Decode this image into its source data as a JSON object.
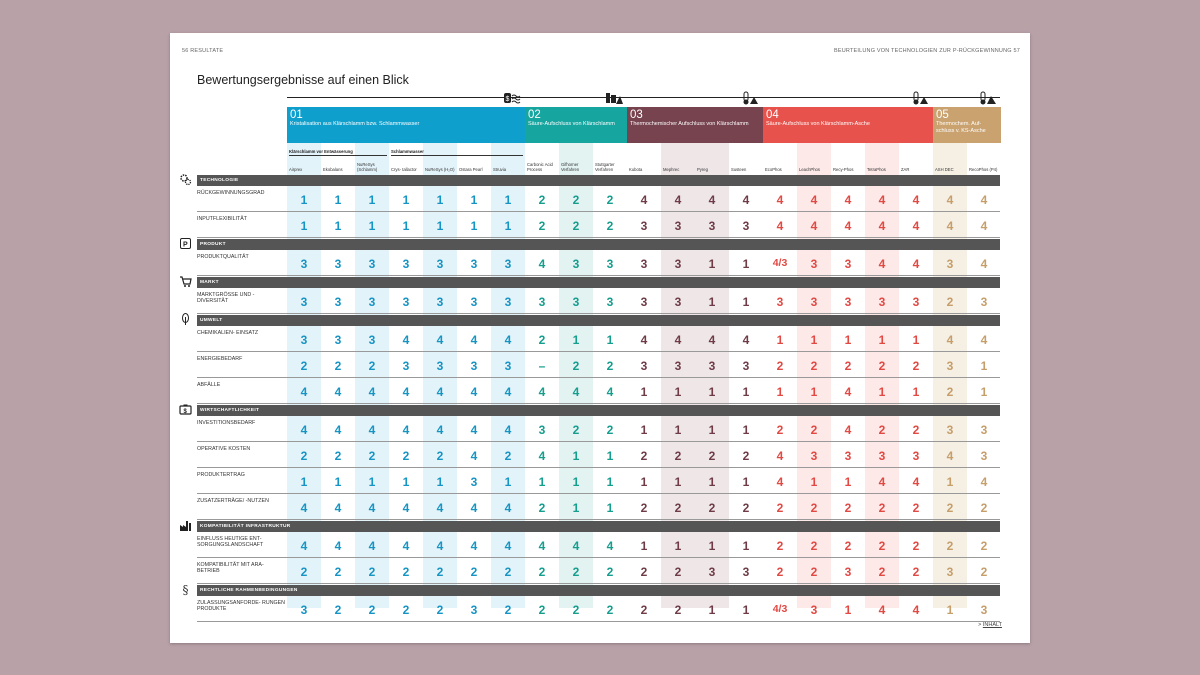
{
  "header": {
    "left": "56    RESULTATE",
    "right": "BEURTEILUNG VON TECHNOLOGIEN ZUR P-RÜCKGEWINNUNG    57"
  },
  "title": "Bewertungsergebnisse auf einen Blick",
  "groups": [
    {
      "num": "01",
      "label": "Kristalisation aus Klärschlamm bzw. Schlammwasser",
      "color": "#0f9fcd",
      "icon": "water-waves-icon"
    },
    {
      "num": "02",
      "label": "Säure-Aufschluss von Klärschlamm",
      "color": "#17a5a0",
      "icon": "acid-bottle-icon"
    },
    {
      "num": "03",
      "label": "Thermochemischer Aufschluss von Klärschlamm",
      "color": "#76434f",
      "icon": "thermometer-icon"
    },
    {
      "num": "04",
      "label": "Säure-Aufschluss von Klärschlamm-Asche",
      "color": "#e8524c",
      "icon": "thermometer-icon"
    },
    {
      "num": "05",
      "label": "Thermochem. Auf- schluss v. KS-Asche",
      "color": "#c9a26f",
      "icon": "ash-pile-icon"
    }
  ],
  "subgroups": [
    {
      "label": "Klärschlamm vor Entwässerung"
    },
    {
      "label": "Schlammwasser"
    }
  ],
  "columns": [
    "Airprex",
    "Ekobalans",
    "NuReSys (Schlamm)",
    "Crys- tallactor",
    "NuReSys (H₂O)",
    "Ostara Pearl",
    "Struvia",
    "Carbonic Acid Process",
    "Gifhorner Verfahren",
    "Stuttgarter Verfahren",
    "Kubota",
    "Mephrec",
    "Pyreg",
    "Susteen",
    "EcoPhos",
    "LeachPhos",
    "Recy-Phos",
    "TetraPhos",
    "ZAR",
    "ASH DEC",
    "RecoPhos (P4)"
  ],
  "categories": [
    {
      "label": "TECHNOLOGIE",
      "icon": "gears-icon",
      "rows": [
        {
          "label": "RÜCKGEWINNUNGSGRAD",
          "values": [
            "1",
            "1",
            "1",
            "1",
            "1",
            "1",
            "1",
            "2",
            "2",
            "2",
            "4",
            "4",
            "4",
            "4",
            "4",
            "4",
            "4",
            "4",
            "4",
            "4",
            "4"
          ]
        },
        {
          "label": "INPUTFLEXIBILITÄT",
          "values": [
            "1",
            "1",
            "1",
            "1",
            "1",
            "1",
            "1",
            "2",
            "2",
            "2",
            "3",
            "3",
            "3",
            "3",
            "4",
            "4",
            "4",
            "4",
            "4",
            "4",
            "4"
          ]
        }
      ]
    },
    {
      "label": "PRODUKT",
      "icon": "phosphor-box-icon",
      "rows": [
        {
          "label": "PRODUKTQUALITÄT",
          "values": [
            "3",
            "3",
            "3",
            "3",
            "3",
            "3",
            "3",
            "4",
            "3",
            "3",
            "3",
            "3",
            "1",
            "1",
            "4/3",
            "3",
            "3",
            "4",
            "4",
            "3",
            "4"
          ]
        }
      ]
    },
    {
      "label": "MARKT",
      "icon": "cart-icon",
      "rows": [
        {
          "label": "MARKTGRÖSSE UND -DIVERSITÄT",
          "values": [
            "3",
            "3",
            "3",
            "3",
            "3",
            "3",
            "3",
            "3",
            "3",
            "3",
            "3",
            "3",
            "1",
            "1",
            "3",
            "3",
            "3",
            "3",
            "3",
            "2",
            "3"
          ]
        }
      ]
    },
    {
      "label": "UMWELT",
      "icon": "leaf-icon",
      "rows": [
        {
          "label": "CHEMIKALIEN- EINSATZ",
          "values": [
            "3",
            "3",
            "3",
            "4",
            "4",
            "4",
            "4",
            "2",
            "1",
            "1",
            "4",
            "4",
            "4",
            "4",
            "1",
            "1",
            "1",
            "1",
            "1",
            "4",
            "4"
          ]
        },
        {
          "label": "ENERGIEBEDARF",
          "values": [
            "2",
            "2",
            "2",
            "3",
            "3",
            "3",
            "3",
            "–",
            "2",
            "2",
            "3",
            "3",
            "3",
            "3",
            "2",
            "2",
            "2",
            "2",
            "2",
            "3",
            "1"
          ]
        },
        {
          "label": "ABFÄLLE",
          "values": [
            "4",
            "4",
            "4",
            "4",
            "4",
            "4",
            "4",
            "4",
            "4",
            "4",
            "1",
            "1",
            "1",
            "1",
            "1",
            "1",
            "4",
            "1",
            "1",
            "2",
            "1"
          ]
        }
      ]
    },
    {
      "label": "WIRTSCHAFTLICHKEIT",
      "icon": "money-case-icon",
      "rows": [
        {
          "label": "INVESTITIONSBEDARF",
          "values": [
            "4",
            "4",
            "4",
            "4",
            "4",
            "4",
            "4",
            "3",
            "2",
            "2",
            "1",
            "1",
            "1",
            "1",
            "2",
            "2",
            "4",
            "2",
            "2",
            "3",
            "3"
          ]
        },
        {
          "label": "OPERATIVE KOSTEN",
          "values": [
            "2",
            "2",
            "2",
            "2",
            "2",
            "4",
            "2",
            "4",
            "1",
            "1",
            "2",
            "2",
            "2",
            "2",
            "4",
            "3",
            "3",
            "3",
            "3",
            "4",
            "3"
          ]
        },
        {
          "label": "PRODUKTERTRAG",
          "values": [
            "1",
            "1",
            "1",
            "1",
            "1",
            "3",
            "1",
            "1",
            "1",
            "1",
            "1",
            "1",
            "1",
            "1",
            "4",
            "1",
            "1",
            "4",
            "4",
            "1",
            "4"
          ]
        },
        {
          "label": "ZUSATZERTRÄGE/ -NUTZEN",
          "values": [
            "4",
            "4",
            "4",
            "4",
            "4",
            "4",
            "4",
            "2",
            "1",
            "1",
            "2",
            "2",
            "2",
            "2",
            "2",
            "2",
            "2",
            "2",
            "2",
            "2",
            "2"
          ]
        }
      ]
    },
    {
      "label": "KOMPATIBILITÄT INFRASTRUKTUR",
      "icon": "factory-icon",
      "rows": [
        {
          "label": "EINFLUSS HEUTIGE ENT- SORGUNGSLANDSCHAFT",
          "values": [
            "4",
            "4",
            "4",
            "4",
            "4",
            "4",
            "4",
            "4",
            "4",
            "4",
            "1",
            "1",
            "1",
            "1",
            "2",
            "2",
            "2",
            "2",
            "2",
            "2",
            "2"
          ]
        },
        {
          "label": "KOMPATIBILITÄT MIT ARA-BETRIEB",
          "values": [
            "2",
            "2",
            "2",
            "2",
            "2",
            "2",
            "2",
            "2",
            "2",
            "2",
            "2",
            "2",
            "3",
            "3",
            "2",
            "2",
            "3",
            "2",
            "2",
            "3",
            "2"
          ]
        }
      ]
    },
    {
      "label": "RECHTLICHE RAHMENBEDINGUNGEN",
      "icon": "paragraph-icon",
      "rows": [
        {
          "label": "ZULASSUNGSANFORDE- RUNGEN PRODUKTE",
          "values": [
            "3",
            "2",
            "2",
            "2",
            "2",
            "3",
            "2",
            "2",
            "2",
            "2",
            "2",
            "2",
            "1",
            "1",
            "4/3",
            "3",
            "1",
            "4",
            "4",
            "1",
            "3"
          ]
        }
      ]
    }
  ],
  "footer": {
    "arrow": "> ",
    "link": "INHALT"
  },
  "colors": {
    "bar": "#555555",
    "page_bg": "#ffffff",
    "backdrop": "#b9a1a8"
  }
}
